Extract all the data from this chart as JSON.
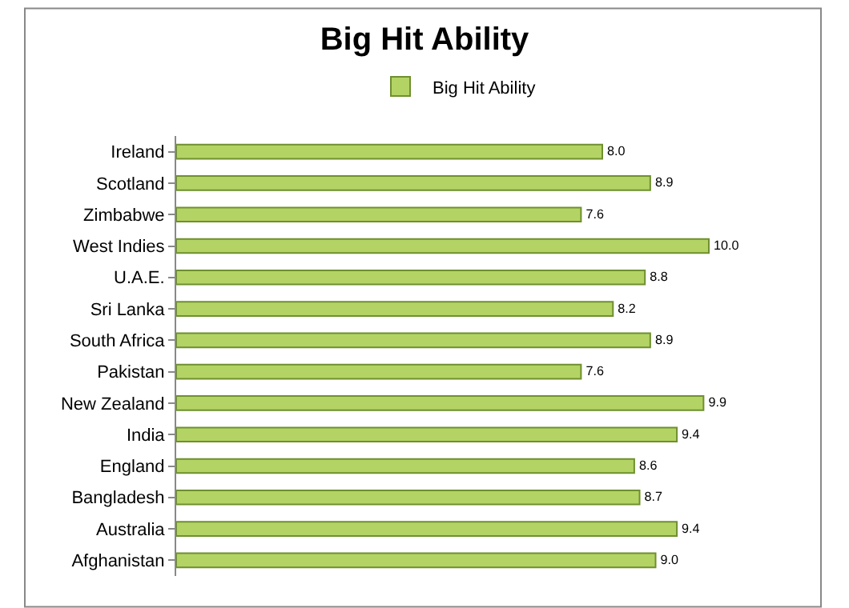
{
  "chart_data": {
    "type": "bar",
    "orientation": "horizontal",
    "title": "Big Hit Ability",
    "categories": [
      "Ireland",
      "Scotland",
      "Zimbabwe",
      "West Indies",
      "U.A.E.",
      "Sri Lanka",
      "South Africa",
      "Pakistan",
      "New Zealand",
      "India",
      "England",
      "Bangladesh",
      "Australia",
      "Afghanistan"
    ],
    "series": [
      {
        "name": "Big Hit Ability",
        "color": "#b3d465",
        "values": [
          8.0,
          8.9,
          7.6,
          10.0,
          8.8,
          8.2,
          8.9,
          7.6,
          9.9,
          9.4,
          8.6,
          8.7,
          9.4,
          9.0
        ],
        "value_labels": [
          "8.0",
          "8.9",
          "7.6",
          "10.0",
          "8.8",
          "8.2",
          "8.9",
          "7.6",
          "9.9",
          "9.4",
          "8.6",
          "8.7",
          "9.4",
          "9.0"
        ]
      }
    ],
    "legend": "top",
    "tick_labels": "y"
  }
}
